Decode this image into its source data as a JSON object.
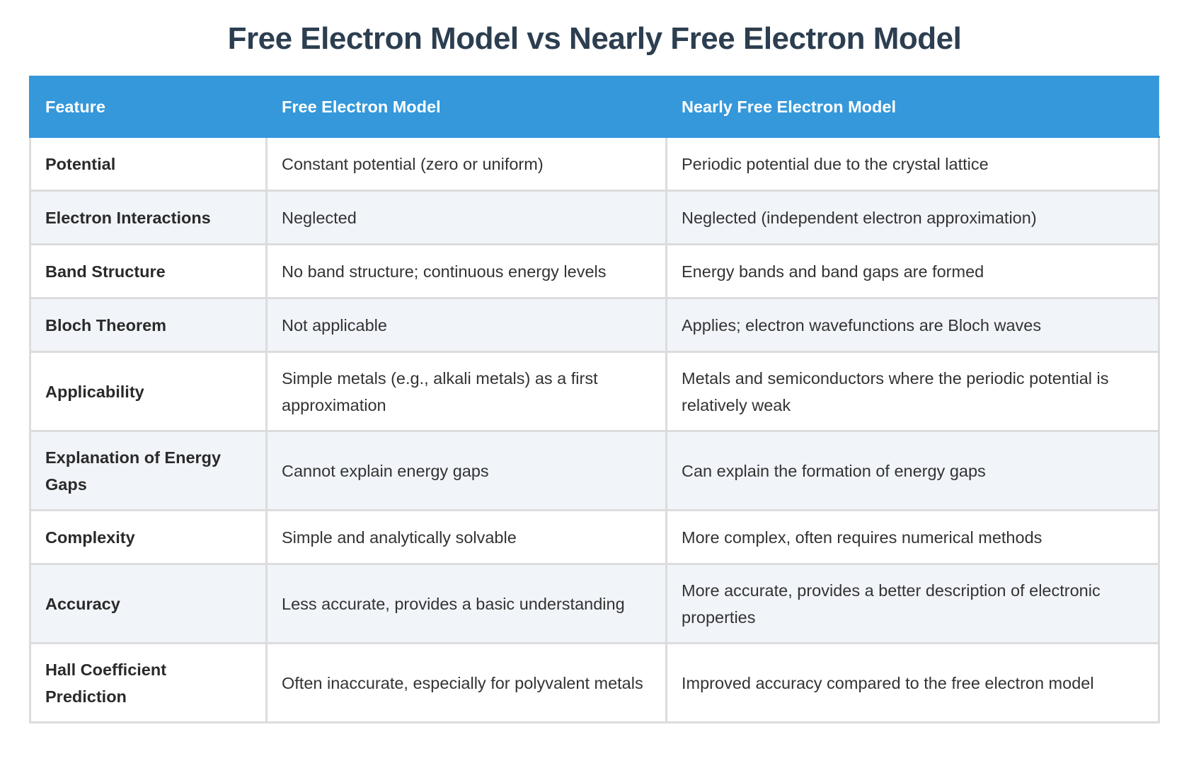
{
  "title": "Free Electron Model vs Nearly Free Electron Model",
  "table": {
    "headers": [
      "Feature",
      "Free Electron Model",
      "Nearly Free Electron Model"
    ],
    "rows": [
      [
        "Potential",
        "Constant potential (zero or uniform)",
        "Periodic potential due to the crystal lattice"
      ],
      [
        "Electron Interactions",
        "Neglected",
        "Neglected (independent electron approximation)"
      ],
      [
        "Band Structure",
        "No band structure; continuous energy levels",
        "Energy bands and band gaps are formed"
      ],
      [
        "Bloch Theorem",
        "Not applicable",
        "Applies; electron wavefunctions are Bloch waves"
      ],
      [
        "Applicability",
        "Simple metals (e.g., alkali metals) as a first approximation",
        "Metals and semiconductors where the periodic potential is relatively weak"
      ],
      [
        "Explanation of Energy Gaps",
        "Cannot explain energy gaps",
        "Can explain the formation of energy gaps"
      ],
      [
        "Complexity",
        "Simple and analytically solvable",
        "More complex, often requires numerical methods"
      ],
      [
        "Accuracy",
        "Less accurate, provides a basic understanding",
        "More accurate, provides a better description of electronic properties"
      ],
      [
        "Hall Coefficient Prediction",
        "Often inaccurate, especially for polyvalent metals",
        "Improved accuracy compared to the free electron model"
      ]
    ]
  },
  "colors": {
    "header_bg": "#3498db",
    "title": "#2c3e50",
    "alt_row": "#f1f4f9"
  }
}
